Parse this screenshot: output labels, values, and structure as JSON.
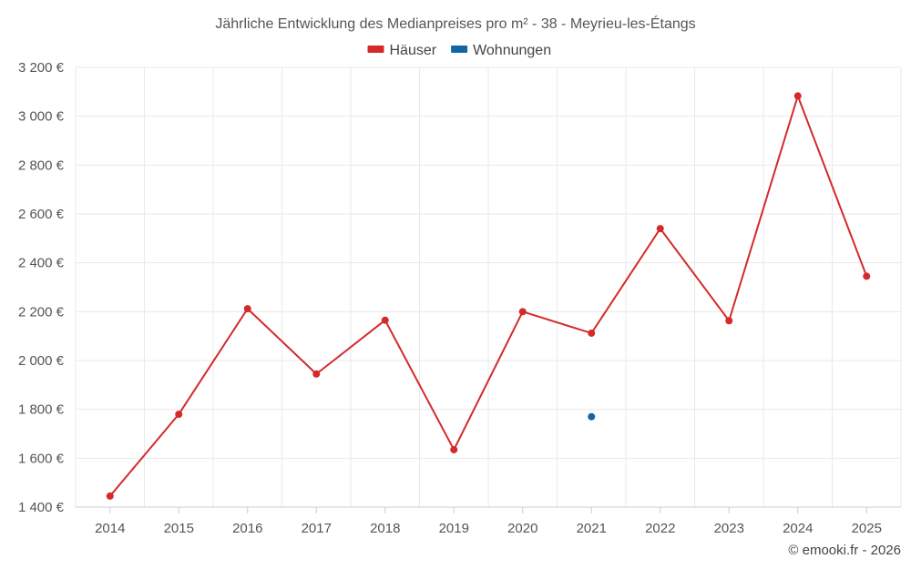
{
  "chart_data": {
    "type": "line",
    "title": "Jährliche Entwicklung des Medianpreises pro m² - 38 - Meyrieu-les-Étangs",
    "categories": [
      "2014",
      "2015",
      "2016",
      "2017",
      "2018",
      "2019",
      "2020",
      "2021",
      "2022",
      "2023",
      "2024",
      "2025"
    ],
    "series": [
      {
        "name": "Häuser",
        "color": "#d42a2a",
        "values": [
          1445,
          1780,
          2212,
          1945,
          2165,
          1635,
          2200,
          2112,
          2540,
          2163,
          3083,
          2345
        ]
      },
      {
        "name": "Wohnungen",
        "color": "#1166a8",
        "values": [
          null,
          null,
          null,
          null,
          null,
          null,
          null,
          1770,
          null,
          null,
          null,
          null
        ]
      }
    ],
    "yticks": [
      1400,
      1600,
      1800,
      2000,
      2200,
      2400,
      2600,
      2800,
      3000,
      3200
    ],
    "ytick_labels": [
      "1 400 €",
      "1 600 €",
      "1 800 €",
      "2 000 €",
      "2 200 €",
      "2 400 €",
      "2 600 €",
      "2 800 €",
      "3 000 €",
      "3 200 €"
    ],
    "ylim": [
      1400,
      3200
    ],
    "xlabel": "",
    "ylabel": "",
    "grid": true,
    "legend_position": "top-center"
  },
  "footer": {
    "credit": "© emooki.fr - 2026"
  }
}
